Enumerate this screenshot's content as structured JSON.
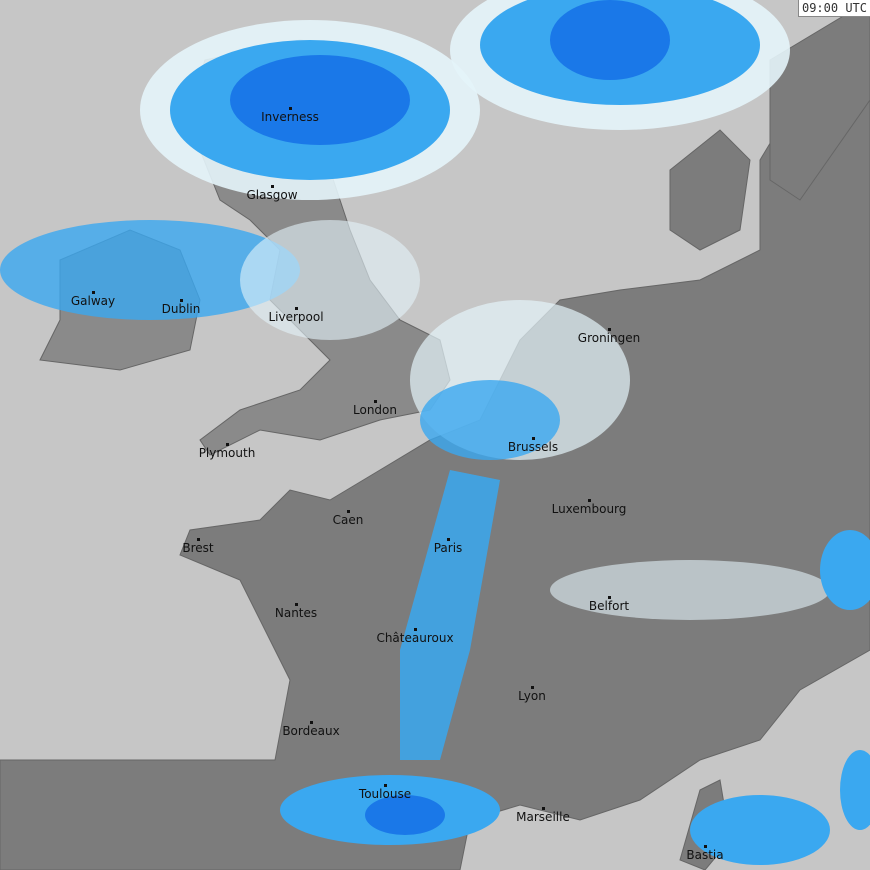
{
  "timestamp": "09:00 UTC",
  "colors": {
    "sea": "#c6c6c6",
    "land": "#7c7c7c",
    "light_precip": "#e4f4fa",
    "medium_precip": "#3aa8f0",
    "heavy_precip": "#1a78e8",
    "extreme_precip": "#8a2be2"
  },
  "cities": [
    {
      "name": "Inverness"
    },
    {
      "name": "Glasgow"
    },
    {
      "name": "Galway"
    },
    {
      "name": "Dublin"
    },
    {
      "name": "Liverpool"
    },
    {
      "name": "London"
    },
    {
      "name": "Plymouth"
    },
    {
      "name": "Groningen"
    },
    {
      "name": "Brussels"
    },
    {
      "name": "Caen"
    },
    {
      "name": "Brest"
    },
    {
      "name": "Paris"
    },
    {
      "name": "Luxembourg"
    },
    {
      "name": "Nantes"
    },
    {
      "name": "Belfort"
    },
    {
      "name": "Châteauroux"
    },
    {
      "name": "Lyon"
    },
    {
      "name": "Bordeaux"
    },
    {
      "name": "Toulouse"
    },
    {
      "name": "Marseille"
    },
    {
      "name": "Bastia"
    }
  ]
}
